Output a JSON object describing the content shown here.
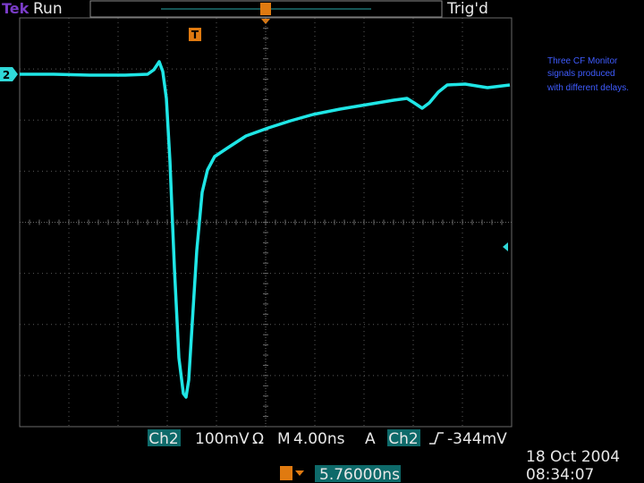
{
  "header": {
    "brand": "Tek",
    "state": "Run",
    "trigger_status": "Trig'd"
  },
  "channel_marker": "2",
  "trigger_marker": "T",
  "note": [
    "Three CF Monitor",
    "signals produced",
    "with different delays."
  ],
  "status": {
    "channel": "Ch2",
    "scale": "100mV",
    "coupling": "Ω",
    "timebase_prefix": "M",
    "timebase": "4.00ns",
    "trigger_mode": "A",
    "trigger_source": "Ch2",
    "trigger_level": "-344mV"
  },
  "position": "5.76000ns",
  "date": "18 Oct 2004",
  "time": "08:34:07"
}
